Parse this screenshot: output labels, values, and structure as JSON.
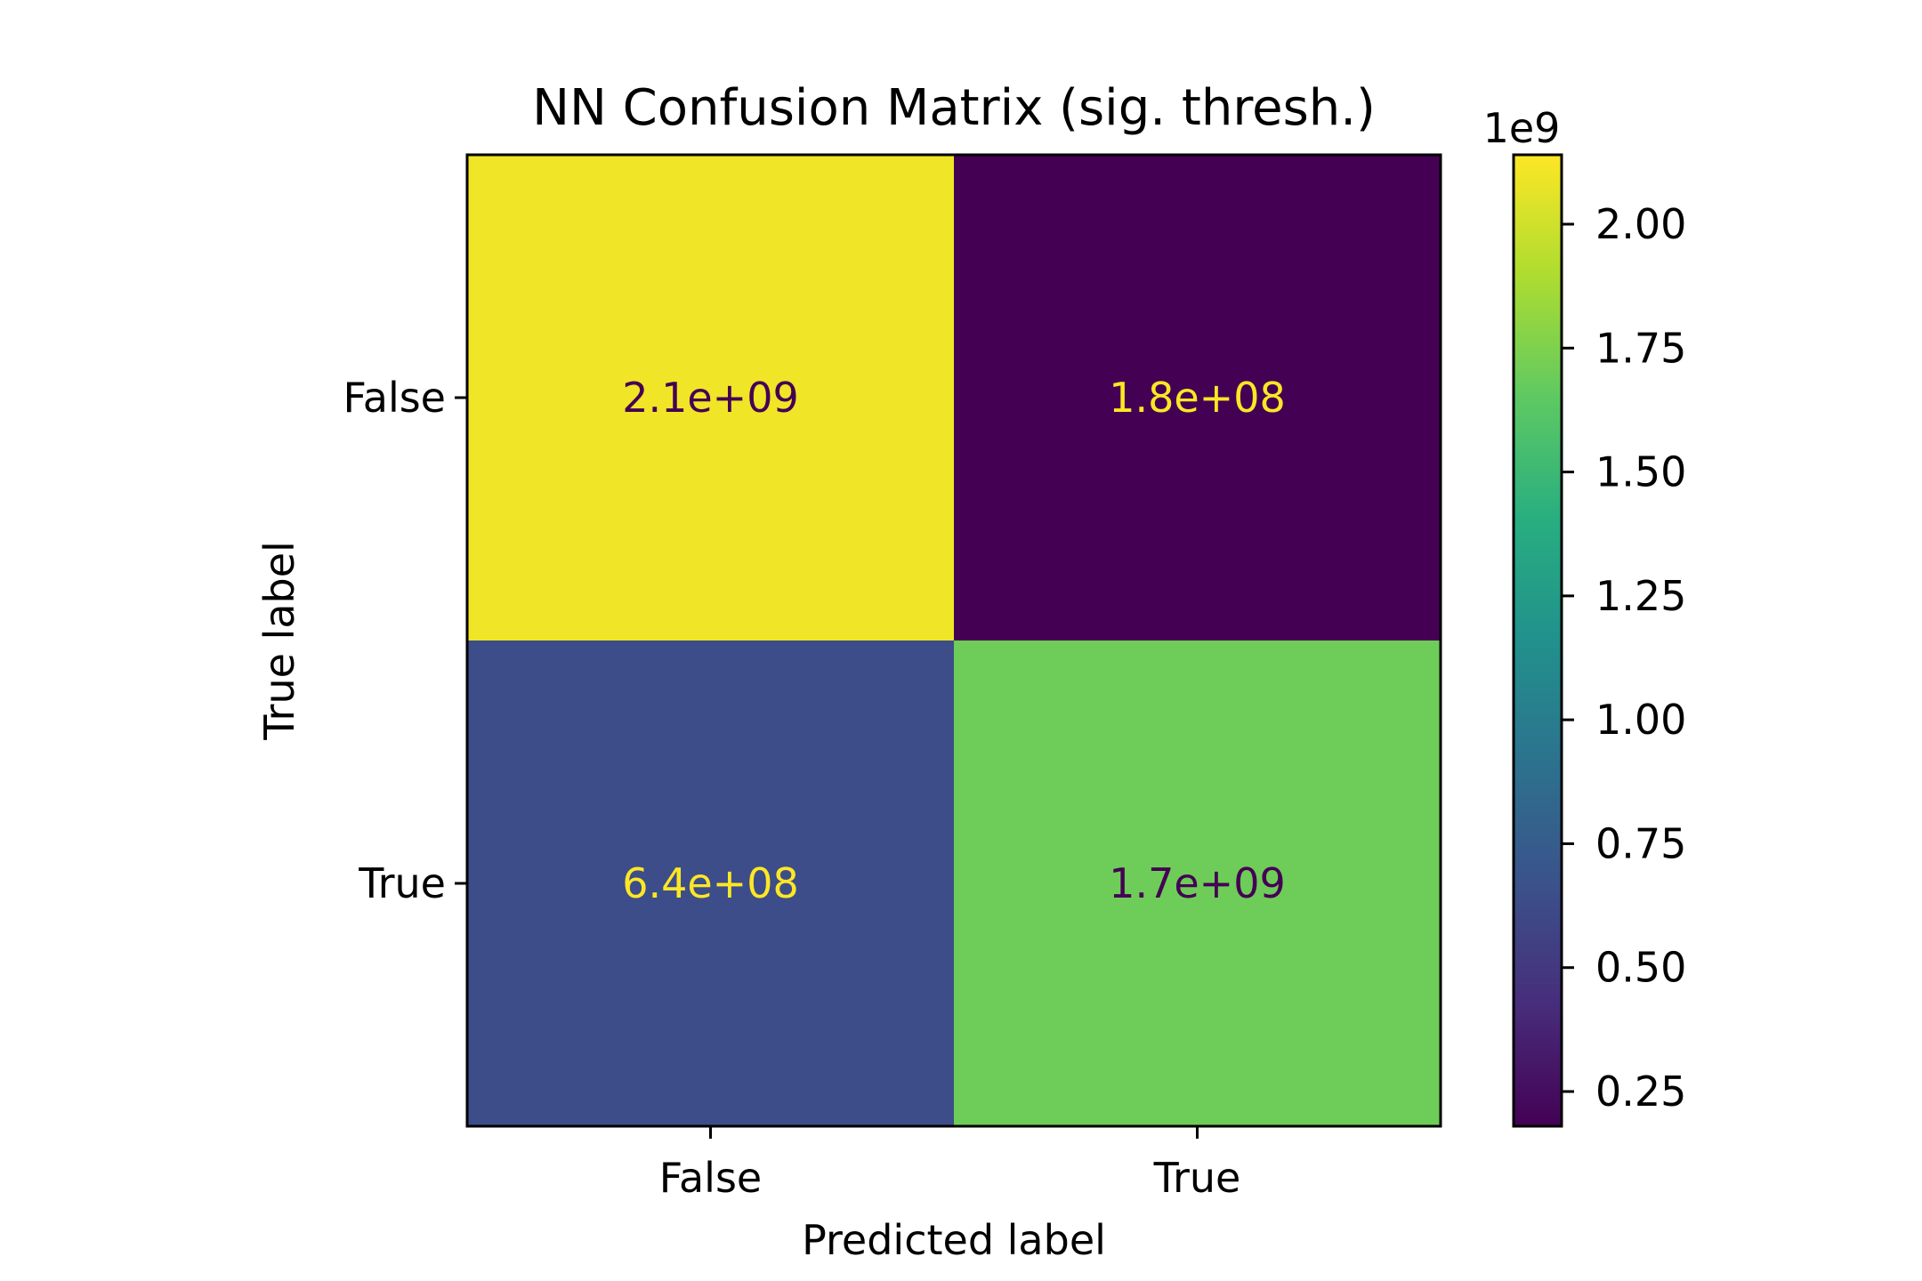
{
  "chart_data": {
    "type": "heatmap",
    "title": "NN Confusion Matrix (sig. thresh.)",
    "xlabel": "Predicted label",
    "ylabel": "True label",
    "x_categories": [
      "False",
      "True"
    ],
    "y_categories": [
      "False",
      "True"
    ],
    "values": [
      [
        2100000000,
        180000000
      ],
      [
        640000000,
        1700000000
      ]
    ],
    "cell_labels": [
      [
        "2.1e+09",
        "1.8e+08"
      ],
      [
        "6.4e+08",
        "1.7e+09"
      ]
    ],
    "colormap": "viridis",
    "colorbar": {
      "range": [
        180000000,
        2140000000
      ],
      "offset_label": "1e9",
      "tick_values": [
        0.25,
        0.5,
        0.75,
        1.0,
        1.25,
        1.5,
        1.75,
        2.0
      ],
      "tick_labels": [
        "0.25",
        "0.50",
        "0.75",
        "1.00",
        "1.25",
        "1.50",
        "1.75",
        "2.00"
      ],
      "scale": 1000000000
    },
    "label_colors": {
      "dark": "#440154",
      "light": "#fde725"
    }
  }
}
